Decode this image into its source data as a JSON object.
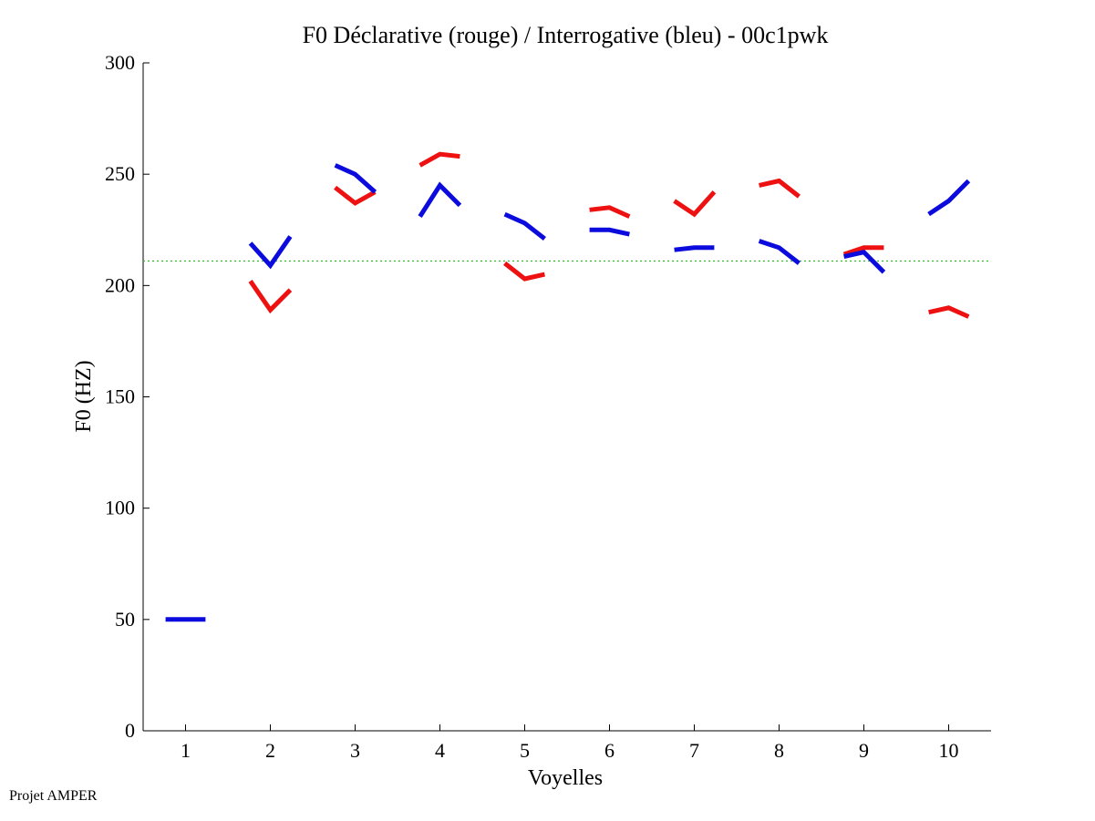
{
  "chart_data": {
    "type": "line",
    "title": "F0 Déclarative (rouge) / Interrogative (bleu) - 00c1pwk",
    "xlabel": "Voyelles",
    "ylabel": "F0 (HZ)",
    "ylim": [
      0,
      300
    ],
    "xlim": [
      0.5,
      10.5
    ],
    "yticks": [
      "0",
      "50",
      "100",
      "150",
      "200",
      "250",
      "300"
    ],
    "xticks": [
      "1",
      "2",
      "3",
      "4",
      "5",
      "6",
      "7",
      "8",
      "9",
      "10"
    ],
    "reference_line": {
      "name": "moyenne",
      "value": 211,
      "color": "#22bb22"
    },
    "series": [
      {
        "name": "Déclarative (rouge)",
        "color": "#ee1111",
        "segments": [
          {
            "voyelle": 2,
            "values": [
              202,
              189,
              198
            ]
          },
          {
            "voyelle": 3,
            "values": [
              244,
              237,
              242
            ]
          },
          {
            "voyelle": 4,
            "values": [
              254,
              259,
              258
            ]
          },
          {
            "voyelle": 5,
            "values": [
              210,
              203,
              205
            ]
          },
          {
            "voyelle": 6,
            "values": [
              234,
              235,
              231
            ]
          },
          {
            "voyelle": 7,
            "values": [
              238,
              232,
              242
            ]
          },
          {
            "voyelle": 8,
            "values": [
              245,
              247,
              240
            ]
          },
          {
            "voyelle": 9,
            "values": [
              214,
              217,
              217
            ]
          },
          {
            "voyelle": 10,
            "values": [
              188,
              190,
              186
            ]
          }
        ]
      },
      {
        "name": "Interrogative (bleu)",
        "color": "#0b0bdd",
        "segments": [
          {
            "voyelle": 1,
            "values": [
              50,
              50,
              50
            ]
          },
          {
            "voyelle": 2,
            "values": [
              219,
              209,
              222
            ]
          },
          {
            "voyelle": 3,
            "values": [
              254,
              250,
              242
            ]
          },
          {
            "voyelle": 4,
            "values": [
              231,
              245,
              236
            ]
          },
          {
            "voyelle": 5,
            "values": [
              232,
              228,
              221
            ]
          },
          {
            "voyelle": 6,
            "values": [
              225,
              225,
              223
            ]
          },
          {
            "voyelle": 7,
            "values": [
              216,
              217,
              217
            ]
          },
          {
            "voyelle": 8,
            "values": [
              220,
              217,
              210
            ]
          },
          {
            "voyelle": 9,
            "values": [
              213,
              215,
              206
            ]
          },
          {
            "voyelle": 10,
            "values": [
              232,
              238,
              247
            ]
          }
        ]
      }
    ]
  },
  "footer": {
    "text": "Projet AMPER"
  }
}
